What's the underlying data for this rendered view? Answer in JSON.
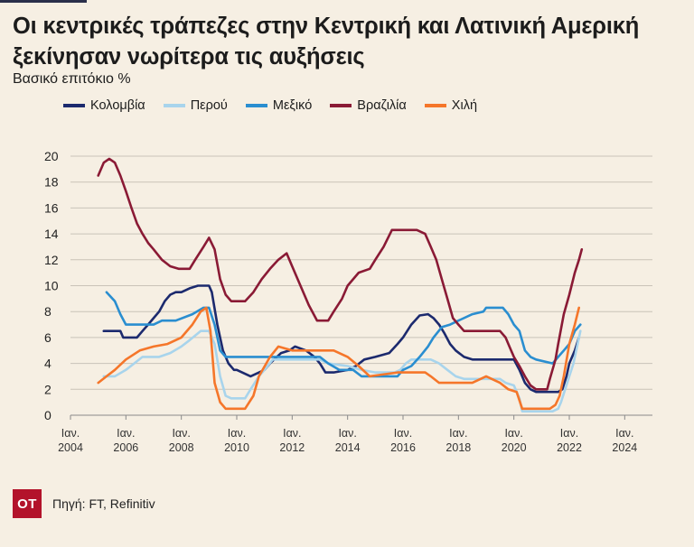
{
  "chart_data": {
    "type": "line",
    "title": "Οι κεντρικές τράπεζες στην Κεντρική και Λατινική Αμερική ξεκίνησαν νωρίτερα τις αυξήσεις",
    "ylabel": "Βασικό επιτόκιο %",
    "xlabel": "",
    "ylim": [
      0,
      20
    ],
    "yticks": [
      "0",
      "2",
      "4",
      "6",
      "8",
      "10",
      "12",
      "14",
      "16",
      "18",
      "20"
    ],
    "xlim": [
      2004,
      2025
    ],
    "xticks": [
      {
        "top": "Ιαν.",
        "bottom": "2004",
        "x": 2004
      },
      {
        "top": "Ιαν.",
        "bottom": "2006",
        "x": 2006
      },
      {
        "top": "Ιαν.",
        "bottom": "2008",
        "x": 2008
      },
      {
        "top": "Ιαν.",
        "bottom": "2010",
        "x": 2010
      },
      {
        "top": "Ιαν.",
        "bottom": "2012",
        "x": 2012
      },
      {
        "top": "Ιαν.",
        "bottom": "2014",
        "x": 2014
      },
      {
        "top": "Ιαν.",
        "bottom": "2016",
        "x": 2016
      },
      {
        "top": "Ιαν.",
        "bottom": "2018",
        "x": 2018
      },
      {
        "top": "Ιαν.",
        "bottom": "2020",
        "x": 2020
      },
      {
        "top": "Ιαν.",
        "bottom": "2022",
        "x": 2022
      },
      {
        "top": "Ιαν.",
        "bottom": "2024",
        "x": 2024
      }
    ],
    "series": [
      {
        "name": "Κολομβία",
        "color": "#1c2a6e",
        "points": [
          [
            2005.2,
            6.5
          ],
          [
            2005.8,
            6.5
          ],
          [
            2005.9,
            6.0
          ],
          [
            2006.4,
            6.0
          ],
          [
            2006.6,
            6.5
          ],
          [
            2006.8,
            7.0
          ],
          [
            2007.0,
            7.5
          ],
          [
            2007.2,
            8.0
          ],
          [
            2007.4,
            8.8
          ],
          [
            2007.6,
            9.3
          ],
          [
            2007.8,
            9.5
          ],
          [
            2008.0,
            9.5
          ],
          [
            2008.3,
            9.8
          ],
          [
            2008.6,
            10.0
          ],
          [
            2009.0,
            10.0
          ],
          [
            2009.1,
            9.5
          ],
          [
            2009.3,
            7.0
          ],
          [
            2009.5,
            5.0
          ],
          [
            2009.7,
            4.0
          ],
          [
            2009.9,
            3.5
          ],
          [
            2010.0,
            3.5
          ],
          [
            2010.5,
            3.0
          ],
          [
            2011.0,
            3.5
          ],
          [
            2011.2,
            4.0
          ],
          [
            2011.6,
            4.8
          ],
          [
            2011.9,
            5.0
          ],
          [
            2012.1,
            5.3
          ],
          [
            2012.5,
            5.0
          ],
          [
            2012.8,
            4.5
          ],
          [
            2013.0,
            4.0
          ],
          [
            2013.2,
            3.3
          ],
          [
            2013.5,
            3.3
          ],
          [
            2014.0,
            3.5
          ],
          [
            2014.3,
            3.8
          ],
          [
            2014.6,
            4.3
          ],
          [
            2015.0,
            4.5
          ],
          [
            2015.5,
            4.8
          ],
          [
            2015.8,
            5.5
          ],
          [
            2016.0,
            6.0
          ],
          [
            2016.3,
            7.0
          ],
          [
            2016.6,
            7.7
          ],
          [
            2016.9,
            7.8
          ],
          [
            2017.1,
            7.5
          ],
          [
            2017.3,
            7.0
          ],
          [
            2017.5,
            6.3
          ],
          [
            2017.7,
            5.5
          ],
          [
            2017.9,
            5.0
          ],
          [
            2018.2,
            4.5
          ],
          [
            2018.5,
            4.3
          ],
          [
            2019.0,
            4.3
          ],
          [
            2019.5,
            4.3
          ],
          [
            2020.0,
            4.3
          ],
          [
            2020.2,
            3.5
          ],
          [
            2020.4,
            2.5
          ],
          [
            2020.6,
            2.0
          ],
          [
            2020.8,
            1.8
          ],
          [
            2021.6,
            1.8
          ],
          [
            2021.75,
            2.0
          ],
          [
            2021.9,
            3.0
          ],
          [
            2022.0,
            4.0
          ],
          [
            2022.2,
            5.0
          ],
          [
            2022.35,
            6.0
          ]
        ]
      },
      {
        "name": "Περού",
        "color": "#a8d4ec",
        "points": [
          [
            2005.2,
            3.0
          ],
          [
            2005.6,
            3.0
          ],
          [
            2006.0,
            3.5
          ],
          [
            2006.3,
            4.0
          ],
          [
            2006.6,
            4.5
          ],
          [
            2007.2,
            4.5
          ],
          [
            2007.6,
            4.8
          ],
          [
            2008.0,
            5.3
          ],
          [
            2008.3,
            5.8
          ],
          [
            2008.7,
            6.5
          ],
          [
            2009.0,
            6.5
          ],
          [
            2009.2,
            5.5
          ],
          [
            2009.4,
            3.0
          ],
          [
            2009.6,
            1.5
          ],
          [
            2009.8,
            1.3
          ],
          [
            2010.3,
            1.3
          ],
          [
            2010.5,
            2.0
          ],
          [
            2010.8,
            3.0
          ],
          [
            2011.0,
            3.5
          ],
          [
            2011.3,
            4.3
          ],
          [
            2013.0,
            4.3
          ],
          [
            2013.3,
            4.0
          ],
          [
            2014.0,
            3.8
          ],
          [
            2014.5,
            3.5
          ],
          [
            2015.0,
            3.3
          ],
          [
            2015.7,
            3.3
          ],
          [
            2015.9,
            3.5
          ],
          [
            2016.1,
            4.0
          ],
          [
            2016.3,
            4.3
          ],
          [
            2017.0,
            4.3
          ],
          [
            2017.3,
            4.0
          ],
          [
            2017.6,
            3.5
          ],
          [
            2017.9,
            3.0
          ],
          [
            2018.2,
            2.8
          ],
          [
            2019.5,
            2.8
          ],
          [
            2019.7,
            2.5
          ],
          [
            2020.0,
            2.3
          ],
          [
            2020.2,
            1.3
          ],
          [
            2020.3,
            0.3
          ],
          [
            2021.4,
            0.3
          ],
          [
            2021.6,
            0.5
          ],
          [
            2021.7,
            1.0
          ],
          [
            2021.85,
            2.0
          ],
          [
            2022.0,
            3.0
          ],
          [
            2022.15,
            4.0
          ],
          [
            2022.3,
            5.5
          ],
          [
            2022.4,
            6.5
          ]
        ]
      },
      {
        "name": "Μεξικό",
        "color": "#2a8ed0",
        "points": [
          [
            2005.3,
            9.5
          ],
          [
            2005.6,
            8.8
          ],
          [
            2005.8,
            7.8
          ],
          [
            2006.0,
            7.0
          ],
          [
            2006.5,
            7.0
          ],
          [
            2007.0,
            7.0
          ],
          [
            2007.3,
            7.3
          ],
          [
            2007.8,
            7.3
          ],
          [
            2008.4,
            7.8
          ],
          [
            2008.8,
            8.3
          ],
          [
            2009.0,
            8.3
          ],
          [
            2009.2,
            7.0
          ],
          [
            2009.4,
            5.0
          ],
          [
            2009.6,
            4.5
          ],
          [
            2013.0,
            4.5
          ],
          [
            2013.3,
            4.0
          ],
          [
            2013.7,
            3.5
          ],
          [
            2014.2,
            3.5
          ],
          [
            2014.5,
            3.0
          ],
          [
            2015.8,
            3.0
          ],
          [
            2016.0,
            3.5
          ],
          [
            2016.3,
            3.8
          ],
          [
            2016.6,
            4.5
          ],
          [
            2016.9,
            5.3
          ],
          [
            2017.1,
            6.0
          ],
          [
            2017.4,
            6.8
          ],
          [
            2017.7,
            7.0
          ],
          [
            2018.0,
            7.3
          ],
          [
            2018.5,
            7.8
          ],
          [
            2018.9,
            8.0
          ],
          [
            2019.0,
            8.3
          ],
          [
            2019.6,
            8.3
          ],
          [
            2019.8,
            7.8
          ],
          [
            2020.0,
            7.0
          ],
          [
            2020.2,
            6.5
          ],
          [
            2020.4,
            5.0
          ],
          [
            2020.6,
            4.5
          ],
          [
            2020.8,
            4.3
          ],
          [
            2021.4,
            4.0
          ],
          [
            2021.6,
            4.5
          ],
          [
            2021.8,
            5.0
          ],
          [
            2022.0,
            5.5
          ],
          [
            2022.2,
            6.5
          ],
          [
            2022.4,
            7.0
          ]
        ]
      },
      {
        "name": "Βραζιλία",
        "color": "#8a1a35",
        "points": [
          [
            2005.0,
            18.5
          ],
          [
            2005.2,
            19.5
          ],
          [
            2005.4,
            19.8
          ],
          [
            2005.6,
            19.5
          ],
          [
            2005.8,
            18.5
          ],
          [
            2006.0,
            17.3
          ],
          [
            2006.2,
            16.0
          ],
          [
            2006.4,
            14.8
          ],
          [
            2006.6,
            14.0
          ],
          [
            2006.8,
            13.3
          ],
          [
            2007.0,
            12.8
          ],
          [
            2007.3,
            12.0
          ],
          [
            2007.6,
            11.5
          ],
          [
            2007.9,
            11.3
          ],
          [
            2008.3,
            11.3
          ],
          [
            2008.5,
            12.0
          ],
          [
            2008.8,
            13.0
          ],
          [
            2009.0,
            13.7
          ],
          [
            2009.2,
            12.8
          ],
          [
            2009.4,
            10.5
          ],
          [
            2009.6,
            9.3
          ],
          [
            2009.8,
            8.8
          ],
          [
            2010.3,
            8.8
          ],
          [
            2010.6,
            9.5
          ],
          [
            2010.9,
            10.5
          ],
          [
            2011.2,
            11.3
          ],
          [
            2011.5,
            12.0
          ],
          [
            2011.8,
            12.5
          ],
          [
            2012.0,
            11.5
          ],
          [
            2012.3,
            10.0
          ],
          [
            2012.6,
            8.5
          ],
          [
            2012.9,
            7.3
          ],
          [
            2013.3,
            7.3
          ],
          [
            2013.5,
            8.0
          ],
          [
            2013.8,
            9.0
          ],
          [
            2014.0,
            10.0
          ],
          [
            2014.4,
            11.0
          ],
          [
            2014.8,
            11.3
          ],
          [
            2015.0,
            12.0
          ],
          [
            2015.3,
            13.0
          ],
          [
            2015.6,
            14.3
          ],
          [
            2016.5,
            14.3
          ],
          [
            2016.8,
            14.0
          ],
          [
            2017.0,
            13.0
          ],
          [
            2017.2,
            12.0
          ],
          [
            2017.4,
            10.5
          ],
          [
            2017.6,
            9.0
          ],
          [
            2017.8,
            7.5
          ],
          [
            2018.0,
            7.0
          ],
          [
            2018.2,
            6.5
          ],
          [
            2019.5,
            6.5
          ],
          [
            2019.7,
            6.0
          ],
          [
            2019.9,
            5.0
          ],
          [
            2020.0,
            4.5
          ],
          [
            2020.2,
            3.8
          ],
          [
            2020.4,
            3.0
          ],
          [
            2020.6,
            2.3
          ],
          [
            2020.8,
            2.0
          ],
          [
            2021.2,
            2.0
          ],
          [
            2021.3,
            2.8
          ],
          [
            2021.5,
            4.3
          ],
          [
            2021.6,
            5.5
          ],
          [
            2021.8,
            7.8
          ],
          [
            2022.0,
            9.3
          ],
          [
            2022.2,
            11.0
          ],
          [
            2022.35,
            12.0
          ],
          [
            2022.45,
            12.8
          ]
        ]
      },
      {
        "name": "Χιλή",
        "color": "#f5762a",
        "points": [
          [
            2005.0,
            2.5
          ],
          [
            2005.3,
            3.0
          ],
          [
            2005.6,
            3.5
          ],
          [
            2006.0,
            4.3
          ],
          [
            2006.5,
            5.0
          ],
          [
            2007.0,
            5.3
          ],
          [
            2007.5,
            5.5
          ],
          [
            2008.0,
            6.0
          ],
          [
            2008.4,
            7.0
          ],
          [
            2008.7,
            8.0
          ],
          [
            2008.9,
            8.3
          ],
          [
            2009.05,
            6.5
          ],
          [
            2009.2,
            2.5
          ],
          [
            2009.4,
            1.0
          ],
          [
            2009.6,
            0.5
          ],
          [
            2010.3,
            0.5
          ],
          [
            2010.6,
            1.5
          ],
          [
            2010.8,
            3.0
          ],
          [
            2011.2,
            4.5
          ],
          [
            2011.5,
            5.3
          ],
          [
            2012.0,
            5.0
          ],
          [
            2013.5,
            5.0
          ],
          [
            2014.0,
            4.5
          ],
          [
            2014.4,
            3.8
          ],
          [
            2014.8,
            3.0
          ],
          [
            2015.8,
            3.3
          ],
          [
            2016.8,
            3.3
          ],
          [
            2017.0,
            3.0
          ],
          [
            2017.3,
            2.5
          ],
          [
            2018.5,
            2.5
          ],
          [
            2019.0,
            3.0
          ],
          [
            2019.5,
            2.5
          ],
          [
            2019.8,
            2.0
          ],
          [
            2020.1,
            1.8
          ],
          [
            2020.3,
            0.5
          ],
          [
            2021.3,
            0.5
          ],
          [
            2021.5,
            0.8
          ],
          [
            2021.65,
            1.5
          ],
          [
            2021.8,
            3.0
          ],
          [
            2022.0,
            5.5
          ],
          [
            2022.2,
            7.0
          ],
          [
            2022.35,
            8.3
          ]
        ]
      }
    ]
  },
  "footer": {
    "logo": "OT",
    "source": "Πηγή: FT, Refinitiv"
  }
}
